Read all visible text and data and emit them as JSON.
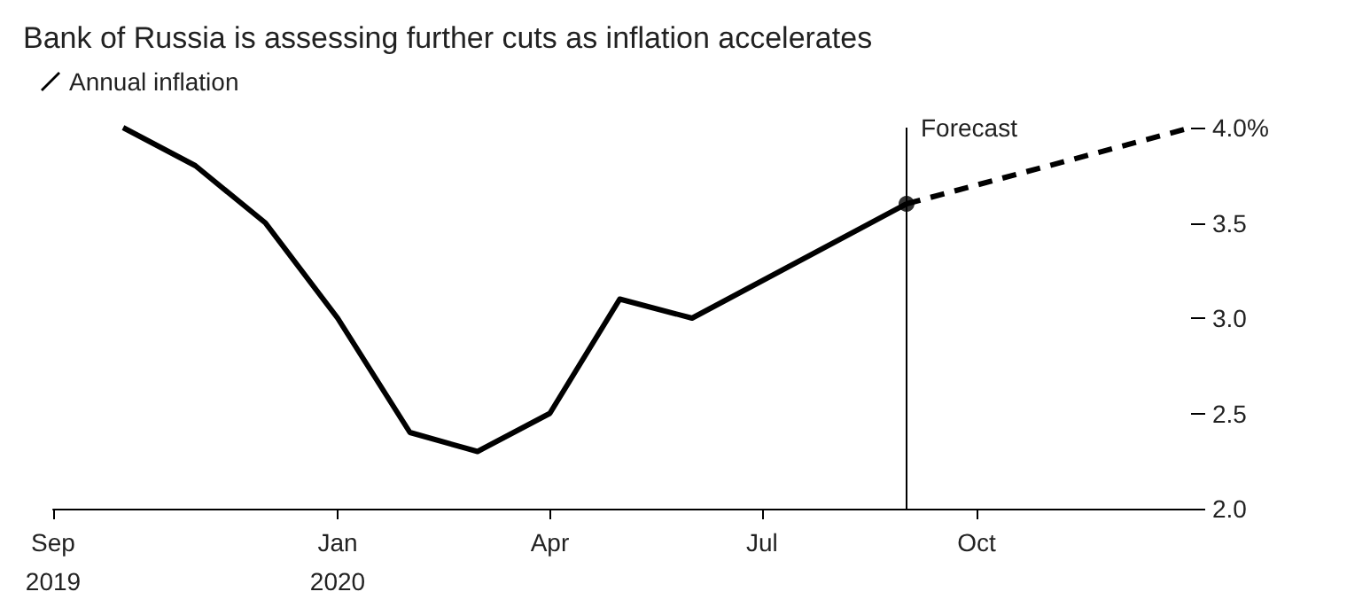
{
  "chart_data": {
    "type": "line",
    "title": "Bank of Russia is assessing further cuts as inflation accelerates",
    "xlim": [
      "2019-09",
      "2021-01"
    ],
    "xticks": [
      {
        "value": "2019-09",
        "label": "Sep\n2019"
      },
      {
        "value": "2020-01",
        "label": "Jan\n2020"
      },
      {
        "value": "2020-04",
        "label": "Apr"
      },
      {
        "value": "2020-07",
        "label": "Jul"
      },
      {
        "value": "2020-10",
        "label": "Oct"
      }
    ],
    "ylim": [
      2,
      4
    ],
    "yticks": [
      {
        "value": 2,
        "label": "2.0"
      },
      2.5,
      {
        "value": 3,
        "label": "3.0"
      },
      3.5,
      {
        "value": 4,
        "label": "4.0%"
      }
    ],
    "series": [
      {
        "name": "Annual inflation",
        "color": "#000000",
        "x": [
          "2019-10",
          "2019-11",
          "2019-12",
          "2020-01",
          "2020-02",
          "2020-03",
          "2020-04",
          "2020-05",
          "2020-06",
          "2020-09"
        ],
        "values": [
          4.0,
          3.8,
          3.5,
          3.0,
          2.4,
          2.3,
          2.5,
          3.1,
          3.0,
          3.6
        ]
      },
      {
        "color": "#000000",
        "line_style": "dashed",
        "x": [
          "2020-09",
          "2021-01"
        ],
        "values": [
          3.6,
          4.0
        ]
      },
      {
        "type": "scatter",
        "marker": "circle",
        "color": "#000000",
        "x": [
          "2020-09"
        ],
        "values": [
          3.6
        ]
      }
    ],
    "ref_lines": [
      {
        "axis": "x",
        "value": "2020-09",
        "label": "Forecast",
        "color": "#000000"
      }
    ],
    "legend": "top left",
    "grid": false
  }
}
